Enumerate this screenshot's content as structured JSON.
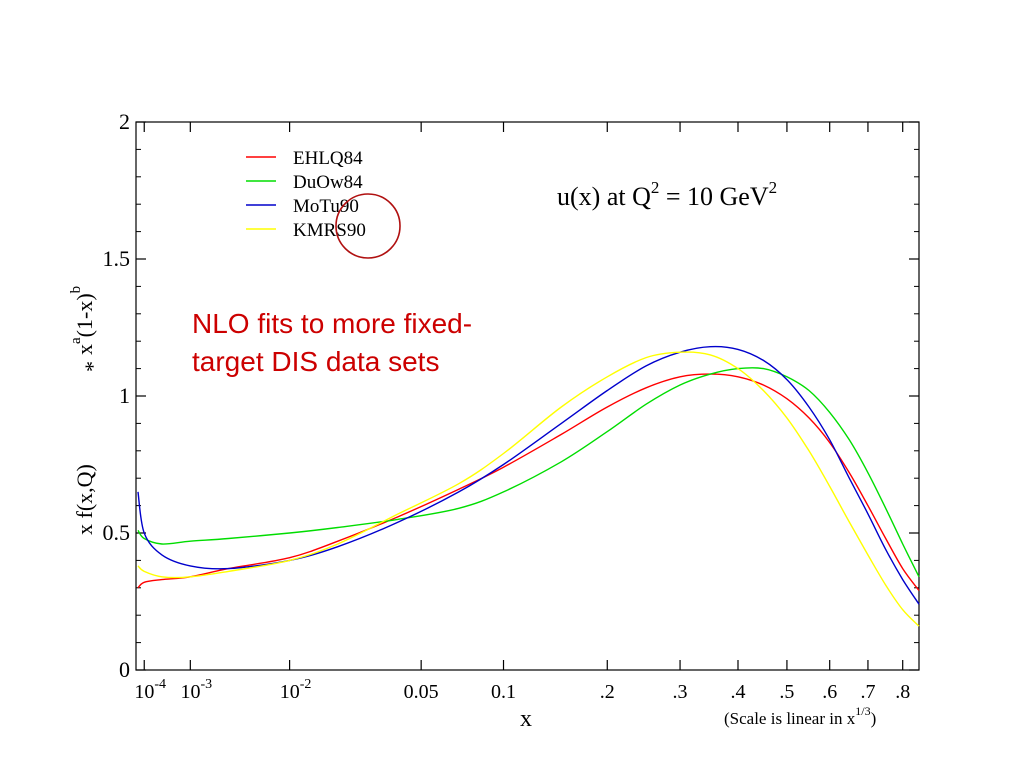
{
  "chart_data": {
    "type": "line",
    "title": "u(x) at Q",
    "title_sup": "2",
    "title_mid": " = 10 GeV",
    "title_sup2": "2",
    "ylabel_main": "x f(x,Q)",
    "ylabel_star": "*",
    "ylabel_x": "x",
    "ylabel_a": "a",
    "ylabel_paren": "(1-x)",
    "ylabel_b": "b",
    "xlabel": "x",
    "scale_note": "(Scale is linear in x",
    "scale_note_sup": "1/3",
    "scale_note_end": ")",
    "annotation_line1": "NLO fits to more fixed-",
    "annotation_line2": "target DIS data sets",
    "x_scale": "linear in x^(1/3)",
    "xlim": [
      5e-05,
      0.85
    ],
    "ylim": [
      0,
      2
    ],
    "yticks": [
      {
        "value": 0,
        "label": "0"
      },
      {
        "value": 0.5,
        "label": "0.5"
      },
      {
        "value": 1,
        "label": "1"
      },
      {
        "value": 1.5,
        "label": "1.5"
      },
      {
        "value": 2,
        "label": "2"
      }
    ],
    "xticks": [
      {
        "value": 0.0001,
        "base": "10",
        "exp": "-4"
      },
      {
        "value": 0.001,
        "base": "10",
        "exp": "-3"
      },
      {
        "value": 0.01,
        "base": "10",
        "exp": "-2"
      },
      {
        "value": 0.05,
        "label": "0.05"
      },
      {
        "value": 0.1,
        "label": "0.1"
      },
      {
        "value": 0.2,
        "label": ".2"
      },
      {
        "value": 0.3,
        "label": ".3"
      },
      {
        "value": 0.4,
        "label": ".4"
      },
      {
        "value": 0.5,
        "label": ".5"
      },
      {
        "value": 0.6,
        "label": ".6"
      },
      {
        "value": 0.7,
        "label": ".7"
      },
      {
        "value": 0.8,
        "label": ".8"
      }
    ],
    "legend_position": "top-left",
    "series": [
      {
        "name": "EHLQ84",
        "color": "#ff0000",
        "x": [
          6e-05,
          0.0001,
          0.0003,
          0.001,
          0.003,
          0.01,
          0.02,
          0.04,
          0.07,
          0.1,
          0.15,
          0.2,
          0.25,
          0.3,
          0.35,
          0.4,
          0.45,
          0.5,
          0.55,
          0.6,
          0.65,
          0.7,
          0.75,
          0.8,
          0.85
        ],
        "y": [
          0.3,
          0.32,
          0.33,
          0.34,
          0.37,
          0.41,
          0.47,
          0.56,
          0.66,
          0.74,
          0.86,
          0.96,
          1.03,
          1.07,
          1.08,
          1.07,
          1.04,
          0.99,
          0.92,
          0.83,
          0.72,
          0.6,
          0.48,
          0.37,
          0.29
        ]
      },
      {
        "name": "DuOw84",
        "color": "#00dd00",
        "x": [
          6e-05,
          0.0001,
          0.0003,
          0.001,
          0.003,
          0.01,
          0.02,
          0.04,
          0.07,
          0.1,
          0.15,
          0.2,
          0.25,
          0.3,
          0.35,
          0.4,
          0.45,
          0.5,
          0.55,
          0.6,
          0.65,
          0.7,
          0.75,
          0.8,
          0.85
        ],
        "y": [
          0.51,
          0.48,
          0.46,
          0.47,
          0.48,
          0.5,
          0.52,
          0.55,
          0.59,
          0.65,
          0.76,
          0.87,
          0.97,
          1.04,
          1.08,
          1.1,
          1.1,
          1.07,
          1.02,
          0.94,
          0.84,
          0.72,
          0.59,
          0.46,
          0.34
        ]
      },
      {
        "name": "MoTu90",
        "color": "#0000cc",
        "x": [
          6e-05,
          0.0001,
          0.0003,
          0.001,
          0.003,
          0.01,
          0.02,
          0.04,
          0.07,
          0.1,
          0.15,
          0.2,
          0.25,
          0.3,
          0.35,
          0.4,
          0.45,
          0.5,
          0.55,
          0.6,
          0.65,
          0.7,
          0.75,
          0.8,
          0.85
        ],
        "y": [
          0.65,
          0.5,
          0.42,
          0.38,
          0.37,
          0.4,
          0.45,
          0.54,
          0.65,
          0.75,
          0.9,
          1.02,
          1.11,
          1.16,
          1.18,
          1.17,
          1.13,
          1.06,
          0.96,
          0.84,
          0.7,
          0.57,
          0.44,
          0.33,
          0.24
        ]
      },
      {
        "name": "KMRS90",
        "color": "#ffff00",
        "x": [
          6e-05,
          0.0001,
          0.0003,
          0.001,
          0.003,
          0.01,
          0.02,
          0.04,
          0.07,
          0.1,
          0.15,
          0.2,
          0.25,
          0.3,
          0.35,
          0.4,
          0.45,
          0.5,
          0.55,
          0.6,
          0.65,
          0.7,
          0.75,
          0.8,
          0.85
        ],
        "y": [
          0.38,
          0.36,
          0.34,
          0.34,
          0.36,
          0.4,
          0.46,
          0.57,
          0.68,
          0.79,
          0.96,
          1.07,
          1.14,
          1.16,
          1.15,
          1.1,
          1.02,
          0.92,
          0.8,
          0.67,
          0.54,
          0.42,
          0.31,
          0.22,
          0.16
        ]
      }
    ]
  },
  "colors": {
    "annotation": "#cc0000",
    "highlight_circle": "#b01010",
    "axis": "#000000"
  }
}
